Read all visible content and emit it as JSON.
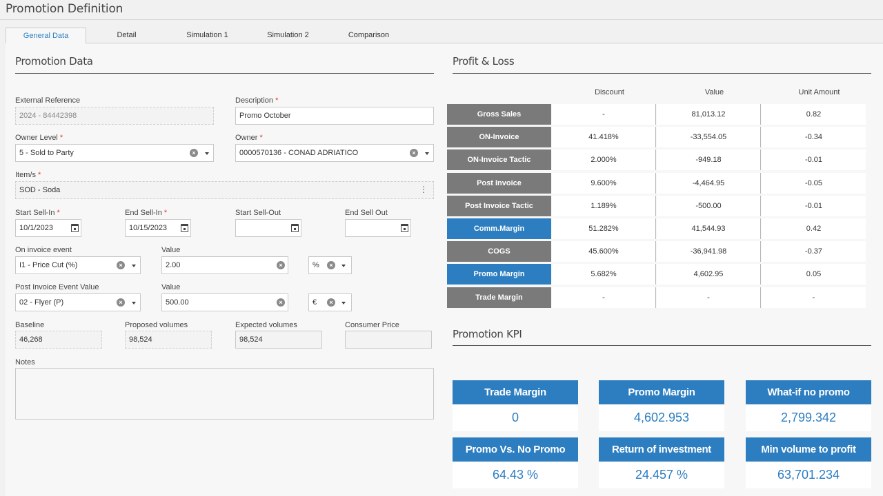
{
  "page_title": "Promotion Definition",
  "tabs": [
    "General Data",
    "Detail",
    "Simulation 1",
    "Simulation 2",
    "Comparison"
  ],
  "promotion_data": {
    "title": "Promotion Data",
    "external_reference": {
      "label": "External Reference",
      "value": "2024 - 84442398"
    },
    "description": {
      "label": "Description",
      "value": "Promo October"
    },
    "owner_level": {
      "label": "Owner Level",
      "value": "5 - Sold to Party"
    },
    "owner": {
      "label": "Owner",
      "value": "0000570136 - CONAD ADRIATICO"
    },
    "items": {
      "label": "Item/s",
      "value": "SOD - Soda"
    },
    "start_sell_in": {
      "label": "Start Sell-In",
      "value": "10/1/2023"
    },
    "end_sell_in": {
      "label": "End Sell-In",
      "value": "10/15/2023"
    },
    "start_sell_out": {
      "label": "Start Sell-Out",
      "value": ""
    },
    "end_sell_out": {
      "label": "End Sell Out",
      "value": ""
    },
    "on_invoice_event": {
      "label": "On invoice event",
      "value": "I1 - Price Cut (%)"
    },
    "on_invoice_value": {
      "label": "Value",
      "value": "2.00"
    },
    "on_invoice_unit": "%",
    "post_invoice_event": {
      "label": "Post Invoice Event Value",
      "value": "02 - Flyer (P)"
    },
    "post_invoice_value": {
      "label": "Value",
      "value": "500.00"
    },
    "post_invoice_unit": "€",
    "baseline": {
      "label": "Baseline",
      "value": "46,268"
    },
    "proposed_volumes": {
      "label": "Proposed volumes",
      "value": "98,524"
    },
    "expected_volumes": {
      "label": "Expected volumes",
      "value": "98,524"
    },
    "consumer_price": {
      "label": "Consumer Price",
      "value": ""
    },
    "notes": {
      "label": "Notes",
      "value": ""
    },
    "required_mark": "*"
  },
  "profit_loss": {
    "title": "Profit & Loss",
    "headers": [
      "Discount",
      "Value",
      "Unit Amount"
    ],
    "rows": [
      {
        "label": "Gross Sales",
        "color": "#7a7a7a",
        "discount": "-",
        "value": "81,013.12",
        "unit": "0.82"
      },
      {
        "label": "ON-Invoice",
        "color": "#7a7a7a",
        "discount": "41.418%",
        "value": "-33,554.05",
        "unit": "-0.34"
      },
      {
        "label": "ON-Invoice Tactic",
        "color": "#7a7a7a",
        "discount": "2.000%",
        "value": "-949.18",
        "unit": "-0.01"
      },
      {
        "label": "Post Invoice",
        "color": "#7a7a7a",
        "discount": "9.600%",
        "value": "-4,464.95",
        "unit": "-0.05"
      },
      {
        "label": "Post Invoice Tactic",
        "color": "#7a7a7a",
        "discount": "1.189%",
        "value": "-500.00",
        "unit": "-0.01"
      },
      {
        "label": "Comm.Margin",
        "color": "#2d7ec1",
        "discount": "51.282%",
        "value": "41,544.93",
        "unit": "0.42"
      },
      {
        "label": "COGS",
        "color": "#7a7a7a",
        "discount": "45.600%",
        "value": "-36,941.98",
        "unit": "-0.37"
      },
      {
        "label": "Promo Margin",
        "color": "#2d7ec1",
        "discount": "5.682%",
        "value": "4,602.95",
        "unit": "0.05"
      },
      {
        "label": "Trade Margin",
        "color": "#7a7a7a",
        "discount": "-",
        "value": "-",
        "unit": "-"
      }
    ]
  },
  "kpi": {
    "title": "Promotion KPI",
    "cards": [
      {
        "label": "Trade Margin",
        "value": "0"
      },
      {
        "label": "Promo Margin",
        "value": "4,602.953"
      },
      {
        "label": "What-if no promo",
        "value": "2,799.342"
      },
      {
        "label": "Promo Vs. No Promo",
        "value": "64.43 %"
      },
      {
        "label": "Return of investment",
        "value": "24.457 %"
      },
      {
        "label": "Min volume to profit",
        "value": "63,701.234"
      }
    ]
  },
  "colors": {
    "accent": "#2d7ec1",
    "gray_label": "#7a7a7a",
    "required": "#d9362b"
  }
}
